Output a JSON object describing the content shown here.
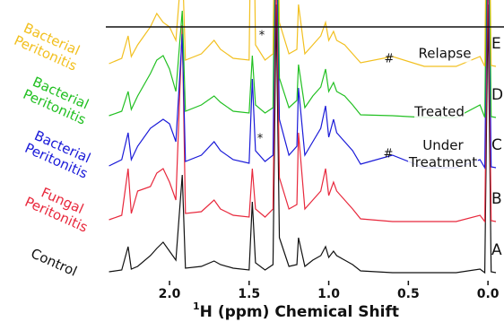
{
  "chart_data": {
    "type": "line",
    "xlabel_sup": "1",
    "xlabel": "H (ppm) Chemical Shift",
    "xlim": [
      2.4,
      -0.05
    ],
    "xticks": [
      {
        "value": 2,
        "label": "2.0"
      },
      1.5,
      {
        "value": 1,
        "label": "1.0"
      },
      0.5,
      {
        "value": 0,
        "label": "0.0"
      }
    ],
    "x": [
      2.38,
      2.3,
      2.26,
      2.24,
      2.2,
      2.12,
      2.08,
      2.04,
      2.0,
      1.96,
      1.92,
      1.9,
      1.8,
      1.72,
      1.68,
      1.6,
      1.5,
      1.48,
      1.46,
      1.4,
      1.35,
      1.33,
      1.31,
      1.25,
      1.2,
      1.19,
      1.15,
      1.1,
      1.05,
      1.02,
      1.0,
      0.97,
      0.95,
      0.9,
      0.85,
      0.8,
      0.6,
      0.4,
      0.2,
      0.05,
      0.02,
      0.0,
      -0.02,
      -0.05
    ],
    "series": [
      {
        "name": "Control",
        "color": "#111111",
        "values": [
          2,
          4,
          30,
          5,
          8,
          20,
          28,
          35,
          25,
          15,
          110,
          6,
          8,
          14,
          10,
          6,
          4,
          80,
          12,
          4,
          10,
          300,
          40,
          8,
          10,
          40,
          8,
          15,
          20,
          30,
          18,
          25,
          20,
          15,
          10,
          3,
          1,
          1,
          1,
          5,
          1,
          300,
          2,
          1
        ]
      },
      {
        "name": "Fungal Peritonitis",
        "color": "#e8283c",
        "values": [
          3,
          8,
          60,
          10,
          35,
          40,
          55,
          60,
          45,
          25,
          220,
          10,
          12,
          25,
          15,
          8,
          6,
          60,
          15,
          6,
          15,
          300,
          50,
          15,
          20,
          100,
          15,
          25,
          35,
          60,
          30,
          45,
          35,
          25,
          15,
          4,
          1,
          1,
          1,
          8,
          1,
          300,
          2,
          1
        ]
      },
      {
        "name": "Bacterial Peritonitis",
        "color": "#1a1ad8",
        "values": [
          3,
          10,
          40,
          10,
          25,
          45,
          50,
          55,
          50,
          30,
          150,
          8,
          15,
          30,
          20,
          10,
          6,
          100,
          20,
          8,
          15,
          300,
          55,
          15,
          25,
          90,
          15,
          30,
          45,
          70,
          35,
          55,
          40,
          30,
          20,
          5,
          15,
          1,
          1,
          10,
          1,
          300,
          2,
          1
        ]
      },
      {
        "name": "Bacterial Peritonitis",
        "color": "#22c022",
        "values": [
          3,
          8,
          30,
          10,
          25,
          50,
          65,
          70,
          55,
          30,
          120,
          8,
          15,
          25,
          18,
          8,
          6,
          70,
          15,
          6,
          12,
          300,
          45,
          12,
          20,
          60,
          12,
          25,
          35,
          55,
          30,
          40,
          30,
          25,
          15,
          4,
          3,
          1,
          1,
          15,
          1,
          300,
          2,
          1
        ]
      },
      {
        "name": "Bacterial Peritonitis",
        "color": "#f2c020",
        "values": [
          4,
          10,
          35,
          12,
          25,
          45,
          60,
          50,
          45,
          30,
          120,
          8,
          15,
          30,
          20,
          10,
          8,
          300,
          25,
          8,
          15,
          300,
          50,
          15,
          20,
          70,
          15,
          25,
          35,
          50,
          30,
          40,
          30,
          25,
          15,
          5,
          12,
          1,
          1,
          12,
          1,
          300,
          2,
          1
        ]
      }
    ],
    "panel_labels": [
      "A",
      "B",
      "C",
      "D",
      "E"
    ],
    "annotations": [
      "Relapse",
      "Treated",
      "Under Treatment",
      "#",
      "#",
      "*",
      "*"
    ]
  }
}
